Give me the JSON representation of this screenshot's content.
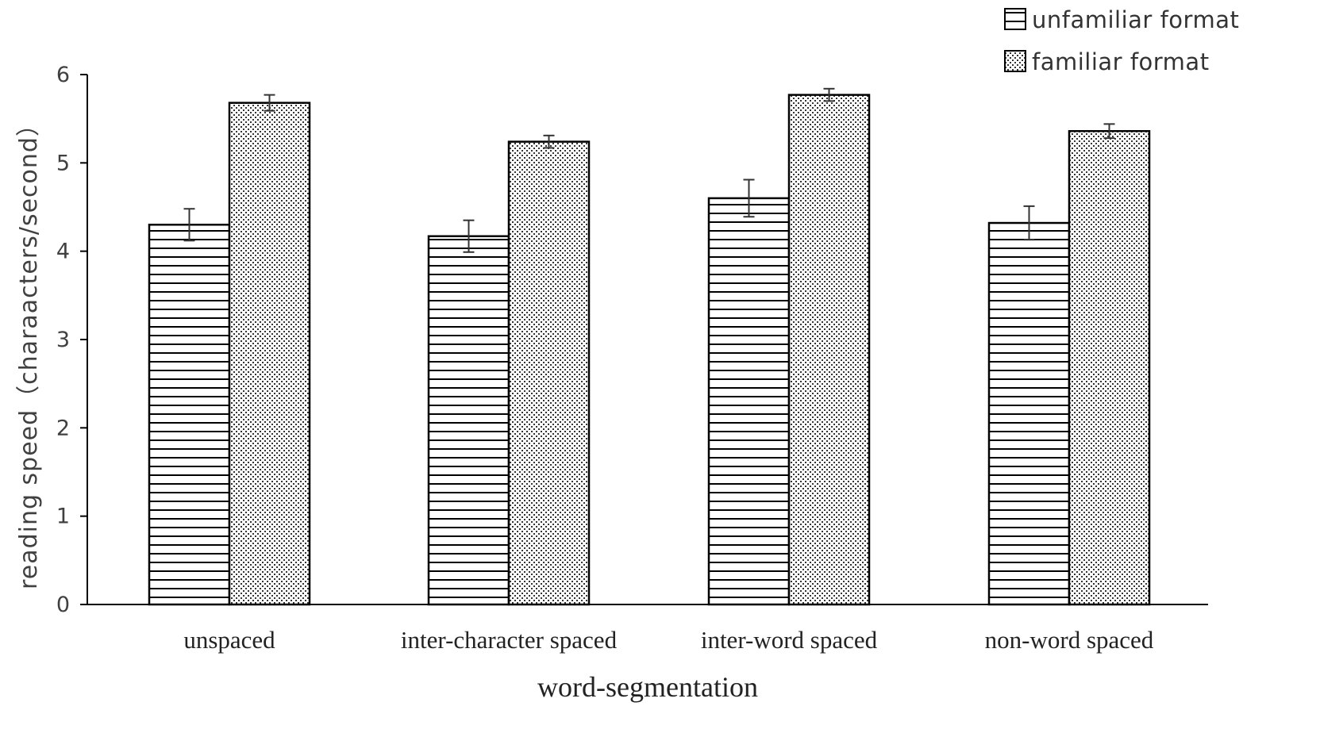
{
  "chart_data": {
    "type": "bar",
    "title": "",
    "xlabel": "word-segmentation",
    "ylabel": "reading speed（charaacters/second）",
    "ylim": [
      0,
      6
    ],
    "yticks": [
      "0",
      "1",
      "2",
      "3",
      "4",
      "5",
      "6"
    ],
    "grid": false,
    "legend_position": "top-right",
    "categories": [
      "unspaced",
      "inter-character spaced",
      "inter-word spaced",
      "non-word spaced"
    ],
    "series": [
      {
        "name": "unfamiliar format",
        "pattern": "horizontal-lines",
        "values": [
          4.3,
          4.17,
          4.6,
          4.32
        ],
        "errors": [
          0.18,
          0.18,
          0.21,
          0.19
        ]
      },
      {
        "name": "familiar format",
        "pattern": "dots",
        "values": [
          5.68,
          5.24,
          5.77,
          5.36
        ],
        "errors": [
          0.09,
          0.07,
          0.07,
          0.08
        ]
      }
    ]
  }
}
